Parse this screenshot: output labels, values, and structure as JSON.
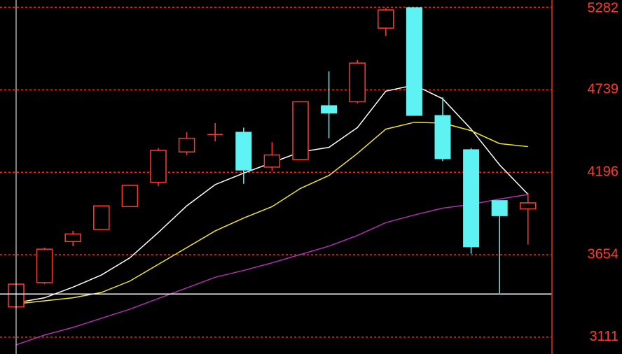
{
  "chart_data": {
    "type": "candlestick",
    "title": "",
    "xlabel": "",
    "ylabel": "",
    "ylim": [
      3000,
      5330
    ],
    "y_ticks": [
      3111,
      3654,
      4196,
      4739,
      5282
    ],
    "grid": true,
    "colors": {
      "background": "#000000",
      "up": "#ff3b2f",
      "down": "#5ef2f2",
      "axis": "#e0301e",
      "grid": "#e0301e",
      "tick_label": "#ff3b2f",
      "ma_fast": "#ffffff",
      "ma_mid": "#f0e430",
      "ma_slow": "#b030b0",
      "crosshair": "#ffffff"
    },
    "candles": [
      {
        "open": 3310,
        "close": 3460,
        "high": 3460,
        "low": 3300
      },
      {
        "open": 3470,
        "close": 3690,
        "high": 3700,
        "low": 3460
      },
      {
        "open": 3740,
        "close": 3790,
        "high": 3810,
        "low": 3710
      },
      {
        "open": 3820,
        "close": 3975,
        "high": 3975,
        "low": 3820
      },
      {
        "open": 3970,
        "close": 4110,
        "high": 4110,
        "low": 3970
      },
      {
        "open": 4130,
        "close": 4340,
        "high": 4355,
        "low": 4105
      },
      {
        "open": 4330,
        "close": 4420,
        "high": 4460,
        "low": 4310
      },
      {
        "open": 4445,
        "close": 4445,
        "high": 4520,
        "low": 4400
      },
      {
        "open": 4460,
        "close": 4210,
        "high": 4490,
        "low": 4120
      },
      {
        "open": 4230,
        "close": 4310,
        "high": 4395,
        "low": 4205
      },
      {
        "open": 4280,
        "close": 4660,
        "high": 4660,
        "low": 4280
      },
      {
        "open": 4635,
        "close": 4585,
        "high": 4860,
        "low": 4420
      },
      {
        "open": 4660,
        "close": 4915,
        "high": 4935,
        "low": 4650
      },
      {
        "open": 5145,
        "close": 5265,
        "high": 5275,
        "low": 5095
      },
      {
        "open": 5280,
        "close": 4570,
        "high": 5280,
        "low": 4570
      },
      {
        "open": 4570,
        "close": 4285,
        "high": 4690,
        "low": 4270
      },
      {
        "open": 4345,
        "close": 3705,
        "high": 4355,
        "low": 3660
      },
      {
        "open": 4010,
        "close": 3910,
        "high": 4010,
        "low": 3400
      },
      {
        "open": 3955,
        "close": 3995,
        "high": 4060,
        "low": 3720
      }
    ],
    "ma_series": [
      {
        "values": [
          3337,
          3370,
          3440,
          3520,
          3633,
          3800,
          3975,
          4115,
          4190,
          4260,
          4330,
          4360,
          4490,
          4730,
          4770,
          4680,
          4480,
          4245,
          4051
        ]
      },
      {
        "values": [
          3330,
          3350,
          3370,
          3405,
          3480,
          3590,
          3700,
          3810,
          3895,
          3970,
          4090,
          4175,
          4320,
          4480,
          4525,
          4520,
          4470,
          4385,
          4365
        ]
      },
      {
        "values": [
          3060,
          3125,
          3175,
          3235,
          3295,
          3365,
          3435,
          3505,
          3550,
          3600,
          3655,
          3710,
          3780,
          3865,
          3915,
          3960,
          3985,
          4020,
          4050
        ]
      }
    ],
    "crosshair_y": 3395
  }
}
